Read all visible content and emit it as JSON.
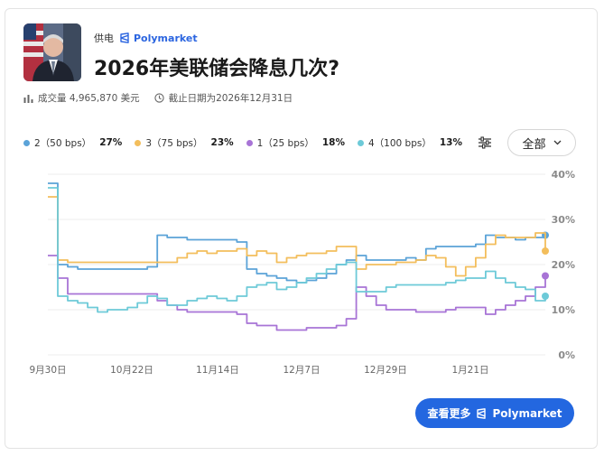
{
  "source": {
    "name": "供电",
    "brand": "Polymarket"
  },
  "title": "2026年美联储会降息几次?",
  "meta": {
    "volume": "成交量 4,965,870 美元",
    "deadline": "截止日期为2026年12月31日"
  },
  "filter": {
    "all_label": "全部"
  },
  "button": {
    "more_label": "查看更多",
    "brand": "Polymarket"
  },
  "icons": [
    "bar-chart-icon",
    "clock-icon",
    "polymarket-logo-icon",
    "filter-sliders-icon",
    "chevron-down-icon"
  ],
  "colors": {
    "series_2": "#5ba3d8",
    "series_3": "#f3be5c",
    "series_1": "#a874d6",
    "series_4": "#6dcad8",
    "brand": "#2367e0"
  },
  "legend": [
    {
      "label": "2（50 bps）",
      "pct": "27%",
      "color": "#5ba3d8"
    },
    {
      "label": "3（75 bps）",
      "pct": "23%",
      "color": "#f3be5c"
    },
    {
      "label": "1（25 bps）",
      "pct": "18%",
      "color": "#a874d6"
    },
    {
      "label": "4（100 bps）",
      "pct": "13%",
      "color": "#6dcad8"
    }
  ],
  "chart_data": {
    "type": "line",
    "x_ticks": [
      "9月30日",
      "10月22日",
      "11月14日",
      "12月7日",
      "12月29日",
      "1月21日"
    ],
    "y_ticks": [
      "0%",
      "10%",
      "20%",
      "30%",
      "40%"
    ],
    "ylim": [
      0,
      40
    ],
    "grid": true,
    "x_count": 51,
    "series": [
      {
        "name": "2（50 bps）",
        "color": "#5ba3d8",
        "values": [
          38,
          20,
          19.5,
          19,
          19,
          19,
          19,
          19,
          19,
          19,
          19.5,
          26.5,
          26,
          26,
          25.5,
          25.5,
          25.5,
          25.5,
          25.5,
          25,
          19,
          18,
          17.5,
          17,
          16.5,
          16,
          16.5,
          17,
          18,
          20,
          21,
          22,
          21,
          21,
          21,
          21,
          21.5,
          21,
          23.5,
          24,
          24,
          24,
          24,
          24.5,
          26.5,
          26,
          26,
          25.5,
          26,
          26,
          26.5
        ]
      },
      {
        "name": "3（75 bps）",
        "color": "#f3be5c",
        "values": [
          35,
          21,
          20.5,
          20.5,
          20.5,
          20.5,
          20.5,
          20.5,
          20.5,
          20.5,
          20.5,
          20.5,
          20.5,
          21.5,
          22.5,
          23,
          22.5,
          23,
          23,
          23.5,
          22,
          23,
          22.5,
          20.5,
          21.5,
          22,
          22.5,
          22.5,
          23,
          24,
          24,
          19,
          20,
          20,
          20,
          20.5,
          20.5,
          21,
          22,
          21.5,
          19.5,
          17.5,
          19.5,
          21.5,
          24.5,
          26.5,
          26,
          26,
          26,
          27,
          23
        ]
      },
      {
        "name": "1（25 bps）",
        "color": "#a874d6",
        "values": [
          22,
          17,
          13.5,
          13.5,
          13.5,
          13.5,
          13.5,
          13.5,
          13.5,
          13.5,
          13.5,
          12,
          11,
          10,
          9.5,
          9.5,
          9.5,
          9.5,
          9.5,
          9,
          7,
          6.5,
          6.5,
          5.5,
          5.5,
          5.5,
          6,
          6,
          6,
          6.5,
          8,
          15,
          13,
          11,
          10,
          10,
          10,
          9.5,
          9.5,
          9.5,
          10,
          10.5,
          10.5,
          10.5,
          9,
          10,
          11,
          12,
          13,
          15,
          17.5
        ]
      },
      {
        "name": "4（100 bps）",
        "color": "#6dcad8",
        "values": [
          37,
          13,
          12,
          11.5,
          10.5,
          9.5,
          10,
          10,
          10.5,
          11.5,
          13,
          12.5,
          11,
          11,
          12,
          12.5,
          13,
          12.5,
          12,
          13,
          15,
          15.5,
          16,
          14.5,
          15,
          16,
          17,
          18,
          19,
          20,
          20.5,
          14,
          14,
          14,
          15,
          15.5,
          15.5,
          15.5,
          15.5,
          15.5,
          16,
          16.5,
          17,
          17,
          18.5,
          17,
          16,
          15,
          14.5,
          12,
          13
        ]
      }
    ]
  }
}
